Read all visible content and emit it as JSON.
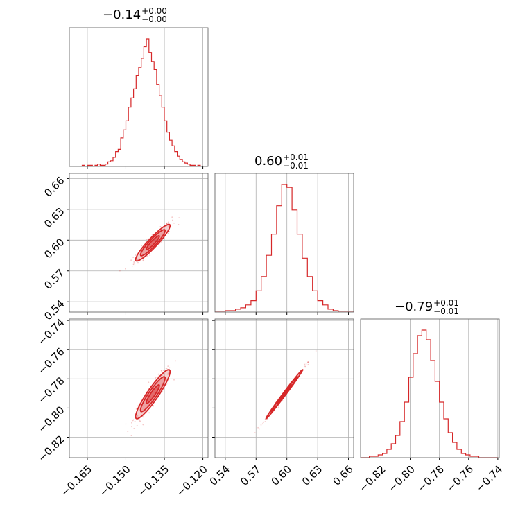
{
  "chart_data": {
    "type": "corner",
    "color": "#d62728",
    "parameters": [
      {
        "title": {
          "value": "−0.14",
          "plus": "+0.00",
          "minus": "−0.00"
        },
        "range": [
          -0.172,
          -0.118
        ],
        "ticks": [
          -0.165,
          -0.15,
          -0.135,
          -0.12
        ],
        "tick_labels": [
          "−0.165",
          "−0.150",
          "−0.135",
          "−0.120"
        ],
        "hist_x": [
          -0.1715,
          -0.1705,
          -0.1695,
          -0.1685,
          -0.1675,
          -0.1665,
          -0.1655,
          -0.1645,
          -0.1635,
          -0.1625,
          -0.1615,
          -0.1605,
          -0.1595,
          -0.1585,
          -0.1575,
          -0.1565,
          -0.1555,
          -0.1545,
          -0.1535,
          -0.1525,
          -0.1515,
          -0.1505,
          -0.1495,
          -0.1485,
          -0.1475,
          -0.1465,
          -0.1455,
          -0.1445,
          -0.1435,
          -0.1425,
          -0.1415,
          -0.1405,
          -0.1395,
          -0.1385,
          -0.1375,
          -0.1365,
          -0.1355,
          -0.1345,
          -0.1335,
          -0.1325,
          -0.1315,
          -0.1305,
          -0.1295,
          -0.1285,
          -0.1275,
          -0.1265,
          -0.1255,
          -0.1245,
          -0.1235,
          -0.1225,
          -0.1215,
          -0.1205,
          -0.1195,
          -0.1185
        ],
        "hist_values": [
          0,
          0,
          0,
          0,
          0,
          1,
          0,
          1,
          1,
          0,
          1,
          2,
          1,
          1,
          2,
          4,
          5,
          8,
          13,
          15,
          25,
          32,
          40,
          52,
          60,
          68,
          80,
          87,
          95,
          105,
          112,
          100,
          92,
          85,
          72,
          62,
          52,
          40,
          30,
          23,
          18,
          13,
          9,
          6,
          4,
          3,
          2,
          1,
          1,
          0,
          1,
          0,
          0,
          0
        ]
      },
      {
        "title": {
          "value": "0.60",
          "plus": "+0.01",
          "minus": "−0.01"
        },
        "range": [
          0.53,
          0.665
        ],
        "ticks": [
          0.54,
          0.57,
          0.6,
          0.63,
          0.66
        ],
        "tick_labels": [
          "0.54",
          "0.57",
          "0.60",
          "0.63",
          "0.66"
        ],
        "hist_x": [
          0.5325,
          0.5375,
          0.5425,
          0.5475,
          0.5525,
          0.5575,
          0.5625,
          0.5675,
          0.5725,
          0.5775,
          0.5825,
          0.5875,
          0.5925,
          0.5975,
          0.6025,
          0.6075,
          0.6125,
          0.6175,
          0.6225,
          0.6275,
          0.6325,
          0.6375,
          0.6425,
          0.6475,
          0.6525,
          0.6575,
          0.6625
        ],
        "hist_values": [
          0,
          0,
          1,
          1,
          2,
          3,
          5,
          8,
          15,
          25,
          40,
          55,
          75,
          90,
          88,
          72,
          55,
          38,
          25,
          15,
          8,
          5,
          2,
          1,
          0,
          0,
          0
        ]
      },
      {
        "title": {
          "value": "−0.79",
          "plus": "+0.01",
          "minus": "−0.01"
        },
        "range": [
          -0.834,
          -0.739
        ],
        "ticks": [
          -0.82,
          -0.8,
          -0.78,
          -0.76,
          -0.74
        ],
        "tick_labels": [
          "−0.82",
          "−0.80",
          "−0.78",
          "−0.76",
          "−0.74"
        ],
        "hist_x": [
          -0.8325,
          -0.8295,
          -0.8265,
          -0.8235,
          -0.8205,
          -0.8175,
          -0.8145,
          -0.8115,
          -0.8085,
          -0.8055,
          -0.8025,
          -0.7995,
          -0.7965,
          -0.7935,
          -0.7905,
          -0.7875,
          -0.7845,
          -0.7815,
          -0.7785,
          -0.7755,
          -0.7725,
          -0.7695,
          -0.7665,
          -0.7635,
          -0.7605,
          -0.7575,
          -0.7545,
          -0.7515,
          -0.7485,
          -0.7455,
          -0.7415
        ],
        "hist_values": [
          0,
          0,
          1,
          1,
          2,
          3,
          6,
          10,
          16,
          26,
          40,
          58,
          75,
          88,
          92,
          85,
          70,
          55,
          40,
          28,
          18,
          11,
          6,
          3,
          2,
          1,
          1,
          0,
          0,
          0,
          0
        ]
      }
    ],
    "pairs": [
      {
        "row": 1,
        "col": 0,
        "mean": [
          -0.1395,
          0.5975
        ],
        "sd": [
          0.0032,
          0.0085
        ],
        "corr": 0.93,
        "contour_levels_sigma": [
          0.8,
          1.5,
          2.1
        ]
      },
      {
        "row": 2,
        "col": 0,
        "mean": [
          -0.1395,
          -0.7905
        ],
        "sd": [
          0.0032,
          0.008
        ],
        "corr": 0.92,
        "contour_levels_sigma": [
          0.8,
          1.5,
          2.1
        ]
      },
      {
        "row": 2,
        "col": 1,
        "mean": [
          0.5975,
          -0.7905
        ],
        "sd": [
          0.0085,
          0.008
        ],
        "corr": 0.995,
        "contour_levels_sigma": [
          0.8,
          1.5,
          2.1
        ]
      }
    ],
    "grid": true
  }
}
